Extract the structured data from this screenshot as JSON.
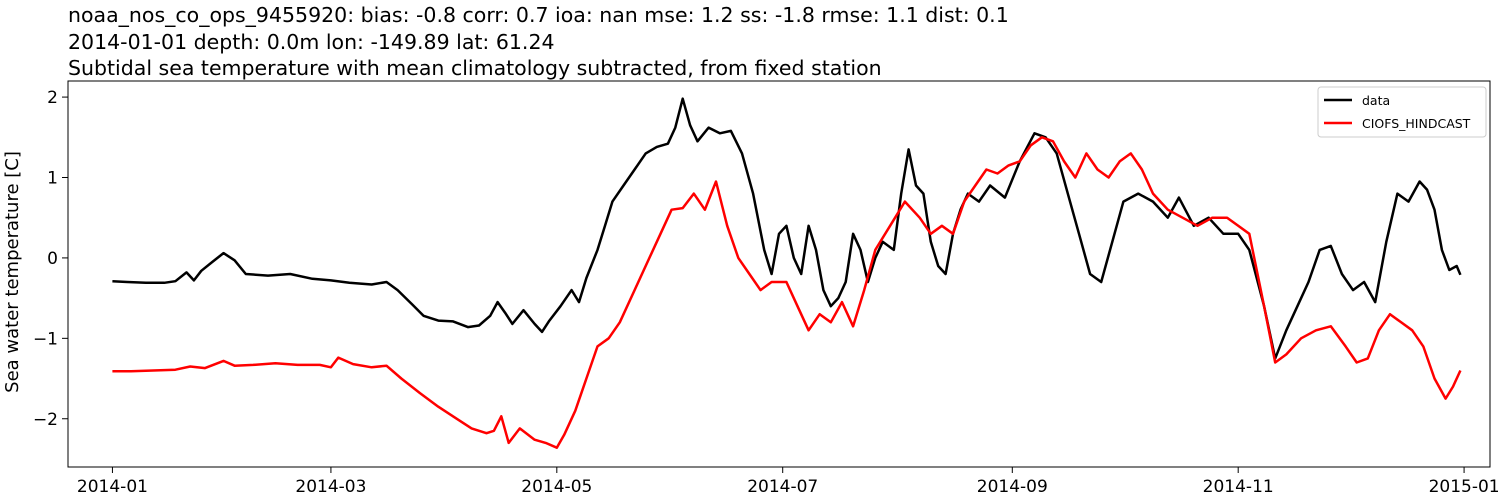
{
  "chart_data": {
    "type": "line",
    "title_lines": [
      "noaa_nos_co_ops_9455920: bias: -0.8  corr: 0.7  ioa: nan  mse: 1.2  ss: -1.8  rmse: 1.1  dist: 0.1",
      "2014-01-01 depth: 0.0m lon: -149.89 lat: 61.24",
      "Subtidal sea temperature with mean climatology subtracted, from fixed station"
    ],
    "xlabel": "",
    "ylabel": "Sea water temperature [C]",
    "xlim": [
      "2013-12-20",
      "2015-01-08"
    ],
    "ylim": [
      -2.6,
      2.2
    ],
    "x_ticks": [
      "2014-01-01",
      "2014-03-01",
      "2014-05-01",
      "2014-07-01",
      "2014-09-01",
      "2014-11-01",
      "2015-01-01"
    ],
    "x_tick_labels": [
      "2014-01",
      "2014-03",
      "2014-05",
      "2014-07",
      "2014-09",
      "2014-11",
      "2015-01"
    ],
    "y_ticks": [
      -2,
      -1,
      0,
      1,
      2
    ],
    "y_tick_labels": [
      "−2",
      "−1",
      "0",
      "1",
      "2"
    ],
    "grid": false,
    "legend_position": "top-right",
    "series": [
      {
        "name": "data",
        "color": "#000000",
        "points": [
          [
            "2014-01-01",
            -0.29
          ],
          [
            "2014-01-05",
            -0.3
          ],
          [
            "2014-01-10",
            -0.31
          ],
          [
            "2014-01-15",
            -0.31
          ],
          [
            "2014-01-18",
            -0.29
          ],
          [
            "2014-01-21",
            -0.18
          ],
          [
            "2014-01-23",
            -0.28
          ],
          [
            "2014-01-25",
            -0.16
          ],
          [
            "2014-01-28",
            -0.05
          ],
          [
            "2014-01-31",
            0.06
          ],
          [
            "2014-02-03",
            -0.03
          ],
          [
            "2014-02-06",
            -0.2
          ],
          [
            "2014-02-12",
            -0.22
          ],
          [
            "2014-02-18",
            -0.2
          ],
          [
            "2014-02-24",
            -0.26
          ],
          [
            "2014-03-01",
            -0.28
          ],
          [
            "2014-03-06",
            -0.31
          ],
          [
            "2014-03-12",
            -0.33
          ],
          [
            "2014-03-16",
            -0.3
          ],
          [
            "2014-03-19",
            -0.4
          ],
          [
            "2014-03-23",
            -0.58
          ],
          [
            "2014-03-26",
            -0.72
          ],
          [
            "2014-03-30",
            -0.78
          ],
          [
            "2014-04-03",
            -0.79
          ],
          [
            "2014-04-07",
            -0.86
          ],
          [
            "2014-04-10",
            -0.84
          ],
          [
            "2014-04-13",
            -0.72
          ],
          [
            "2014-04-15",
            -0.55
          ],
          [
            "2014-04-17",
            -0.68
          ],
          [
            "2014-04-19",
            -0.82
          ],
          [
            "2014-04-22",
            -0.65
          ],
          [
            "2014-04-25",
            -0.82
          ],
          [
            "2014-04-27",
            -0.92
          ],
          [
            "2014-04-29",
            -0.78
          ],
          [
            "2014-05-02",
            -0.6
          ],
          [
            "2014-05-05",
            -0.4
          ],
          [
            "2014-05-07",
            -0.55
          ],
          [
            "2014-05-09",
            -0.25
          ],
          [
            "2014-05-12",
            0.1
          ],
          [
            "2014-05-14",
            0.4
          ],
          [
            "2014-05-16",
            0.7
          ],
          [
            "2014-05-19",
            0.9
          ],
          [
            "2014-05-22",
            1.1
          ],
          [
            "2014-05-25",
            1.3
          ],
          [
            "2014-05-28",
            1.38
          ],
          [
            "2014-05-31",
            1.42
          ],
          [
            "2014-06-02",
            1.62
          ],
          [
            "2014-06-04",
            1.98
          ],
          [
            "2014-06-06",
            1.65
          ],
          [
            "2014-06-08",
            1.45
          ],
          [
            "2014-06-11",
            1.62
          ],
          [
            "2014-06-14",
            1.55
          ],
          [
            "2014-06-17",
            1.58
          ],
          [
            "2014-06-20",
            1.3
          ],
          [
            "2014-06-23",
            0.8
          ],
          [
            "2014-06-26",
            0.1
          ],
          [
            "2014-06-28",
            -0.2
          ],
          [
            "2014-06-30",
            0.3
          ],
          [
            "2014-07-02",
            0.4
          ],
          [
            "2014-07-04",
            0.0
          ],
          [
            "2014-07-06",
            -0.2
          ],
          [
            "2014-07-08",
            0.4
          ],
          [
            "2014-07-10",
            0.1
          ],
          [
            "2014-07-12",
            -0.4
          ],
          [
            "2014-07-14",
            -0.6
          ],
          [
            "2014-07-16",
            -0.5
          ],
          [
            "2014-07-18",
            -0.3
          ],
          [
            "2014-07-20",
            0.3
          ],
          [
            "2014-07-22",
            0.1
          ],
          [
            "2014-07-24",
            -0.3
          ],
          [
            "2014-07-26",
            0.0
          ],
          [
            "2014-07-28",
            0.2
          ],
          [
            "2014-07-31",
            0.1
          ],
          [
            "2014-08-02",
            0.8
          ],
          [
            "2014-08-04",
            1.35
          ],
          [
            "2014-08-06",
            0.9
          ],
          [
            "2014-08-08",
            0.8
          ],
          [
            "2014-08-10",
            0.2
          ],
          [
            "2014-08-12",
            -0.1
          ],
          [
            "2014-08-14",
            -0.2
          ],
          [
            "2014-08-16",
            0.3
          ],
          [
            "2014-08-18",
            0.6
          ],
          [
            "2014-08-20",
            0.8
          ],
          [
            "2014-08-23",
            0.7
          ],
          [
            "2014-08-26",
            0.9
          ],
          [
            "2014-08-30",
            0.75
          ],
          [
            "2014-09-03",
            1.2
          ],
          [
            "2014-09-07",
            1.55
          ],
          [
            "2014-09-10",
            1.5
          ],
          [
            "2014-09-13",
            1.3
          ],
          [
            "2014-09-16",
            0.8
          ],
          [
            "2014-09-19",
            0.3
          ],
          [
            "2014-09-22",
            -0.2
          ],
          [
            "2014-09-25",
            -0.3
          ],
          [
            "2014-09-28",
            0.2
          ],
          [
            "2014-10-01",
            0.7
          ],
          [
            "2014-10-05",
            0.8
          ],
          [
            "2014-10-09",
            0.7
          ],
          [
            "2014-10-13",
            0.5
          ],
          [
            "2014-10-16",
            0.75
          ],
          [
            "2014-10-20",
            0.4
          ],
          [
            "2014-10-24",
            0.5
          ],
          [
            "2014-10-28",
            0.3
          ],
          [
            "2014-11-01",
            0.3
          ],
          [
            "2014-11-04",
            0.1
          ],
          [
            "2014-11-08",
            -0.6
          ],
          [
            "2014-11-11",
            -1.25
          ],
          [
            "2014-11-14",
            -0.9
          ],
          [
            "2014-11-17",
            -0.6
          ],
          [
            "2014-11-20",
            -0.3
          ],
          [
            "2014-11-23",
            0.1
          ],
          [
            "2014-11-26",
            0.15
          ],
          [
            "2014-11-29",
            -0.2
          ],
          [
            "2014-12-02",
            -0.4
          ],
          [
            "2014-12-05",
            -0.3
          ],
          [
            "2014-12-08",
            -0.55
          ],
          [
            "2014-12-11",
            0.2
          ],
          [
            "2014-12-14",
            0.8
          ],
          [
            "2014-12-17",
            0.7
          ],
          [
            "2014-12-20",
            0.95
          ],
          [
            "2014-12-22",
            0.85
          ],
          [
            "2014-12-24",
            0.6
          ],
          [
            "2014-12-26",
            0.1
          ],
          [
            "2014-12-28",
            -0.15
          ],
          [
            "2014-12-30",
            -0.1
          ],
          [
            "2014-12-31",
            -0.21
          ]
        ]
      },
      {
        "name": "CIOFS_HINDCAST",
        "color": "#ff0000",
        "points": [
          [
            "2014-01-01",
            -1.41
          ],
          [
            "2014-01-06",
            -1.41
          ],
          [
            "2014-01-12",
            -1.4
          ],
          [
            "2014-01-18",
            -1.39
          ],
          [
            "2014-01-22",
            -1.35
          ],
          [
            "2014-01-26",
            -1.37
          ],
          [
            "2014-01-31",
            -1.28
          ],
          [
            "2014-02-03",
            -1.34
          ],
          [
            "2014-02-08",
            -1.33
          ],
          [
            "2014-02-14",
            -1.31
          ],
          [
            "2014-02-20",
            -1.33
          ],
          [
            "2014-02-26",
            -1.33
          ],
          [
            "2014-03-01",
            -1.36
          ],
          [
            "2014-03-03",
            -1.24
          ],
          [
            "2014-03-07",
            -1.32
          ],
          [
            "2014-03-12",
            -1.36
          ],
          [
            "2014-03-16",
            -1.34
          ],
          [
            "2014-03-20",
            -1.5
          ],
          [
            "2014-03-25",
            -1.68
          ],
          [
            "2014-03-30",
            -1.85
          ],
          [
            "2014-04-04",
            -2.0
          ],
          [
            "2014-04-08",
            -2.12
          ],
          [
            "2014-04-12",
            -2.18
          ],
          [
            "2014-04-14",
            -2.15
          ],
          [
            "2014-04-16",
            -1.97
          ],
          [
            "2014-04-18",
            -2.3
          ],
          [
            "2014-04-21",
            -2.12
          ],
          [
            "2014-04-25",
            -2.26
          ],
          [
            "2014-04-28",
            -2.3
          ],
          [
            "2014-05-01",
            -2.36
          ],
          [
            "2014-05-03",
            -2.2
          ],
          [
            "2014-05-06",
            -1.9
          ],
          [
            "2014-05-09",
            -1.5
          ],
          [
            "2014-05-12",
            -1.1
          ],
          [
            "2014-05-15",
            -1.0
          ],
          [
            "2014-05-18",
            -0.8
          ],
          [
            "2014-05-22",
            -0.4
          ],
          [
            "2014-05-26",
            0.0
          ],
          [
            "2014-05-29",
            0.3
          ],
          [
            "2014-06-01",
            0.6
          ],
          [
            "2014-06-04",
            0.62
          ],
          [
            "2014-06-07",
            0.8
          ],
          [
            "2014-06-10",
            0.6
          ],
          [
            "2014-06-13",
            0.95
          ],
          [
            "2014-06-16",
            0.4
          ],
          [
            "2014-06-19",
            0.0
          ],
          [
            "2014-06-22",
            -0.2
          ],
          [
            "2014-06-25",
            -0.4
          ],
          [
            "2014-06-28",
            -0.3
          ],
          [
            "2014-07-02",
            -0.3
          ],
          [
            "2014-07-05",
            -0.6
          ],
          [
            "2014-07-08",
            -0.9
          ],
          [
            "2014-07-11",
            -0.7
          ],
          [
            "2014-07-14",
            -0.8
          ],
          [
            "2014-07-17",
            -0.55
          ],
          [
            "2014-07-20",
            -0.85
          ],
          [
            "2014-07-23",
            -0.4
          ],
          [
            "2014-07-26",
            0.1
          ],
          [
            "2014-07-30",
            0.4
          ],
          [
            "2014-08-03",
            0.7
          ],
          [
            "2014-08-07",
            0.5
          ],
          [
            "2014-08-10",
            0.3
          ],
          [
            "2014-08-13",
            0.4
          ],
          [
            "2014-08-16",
            0.3
          ],
          [
            "2014-08-19",
            0.7
          ],
          [
            "2014-08-22",
            0.9
          ],
          [
            "2014-08-25",
            1.1
          ],
          [
            "2014-08-28",
            1.05
          ],
          [
            "2014-08-31",
            1.15
          ],
          [
            "2014-09-03",
            1.2
          ],
          [
            "2014-09-06",
            1.4
          ],
          [
            "2014-09-09",
            1.5
          ],
          [
            "2014-09-12",
            1.45
          ],
          [
            "2014-09-15",
            1.2
          ],
          [
            "2014-09-18",
            1.0
          ],
          [
            "2014-09-21",
            1.3
          ],
          [
            "2014-09-24",
            1.1
          ],
          [
            "2014-09-27",
            1.0
          ],
          [
            "2014-09-30",
            1.2
          ],
          [
            "2014-10-03",
            1.3
          ],
          [
            "2014-10-06",
            1.1
          ],
          [
            "2014-10-09",
            0.8
          ],
          [
            "2014-10-13",
            0.6
          ],
          [
            "2014-10-17",
            0.5
          ],
          [
            "2014-10-21",
            0.4
          ],
          [
            "2014-10-25",
            0.5
          ],
          [
            "2014-10-29",
            0.5
          ],
          [
            "2014-11-01",
            0.4
          ],
          [
            "2014-11-04",
            0.3
          ],
          [
            "2014-11-08",
            -0.6
          ],
          [
            "2014-11-11",
            -1.3
          ],
          [
            "2014-11-14",
            -1.2
          ],
          [
            "2014-11-18",
            -1.0
          ],
          [
            "2014-11-22",
            -0.9
          ],
          [
            "2014-11-26",
            -0.85
          ],
          [
            "2014-11-30",
            -1.1
          ],
          [
            "2014-12-03",
            -1.3
          ],
          [
            "2014-12-06",
            -1.25
          ],
          [
            "2014-12-09",
            -0.9
          ],
          [
            "2014-12-12",
            -0.7
          ],
          [
            "2014-12-15",
            -0.8
          ],
          [
            "2014-12-18",
            -0.9
          ],
          [
            "2014-12-21",
            -1.1
          ],
          [
            "2014-12-24",
            -1.5
          ],
          [
            "2014-12-27",
            -1.75
          ],
          [
            "2014-12-29",
            -1.6
          ],
          [
            "2014-12-31",
            -1.4
          ]
        ]
      }
    ]
  }
}
